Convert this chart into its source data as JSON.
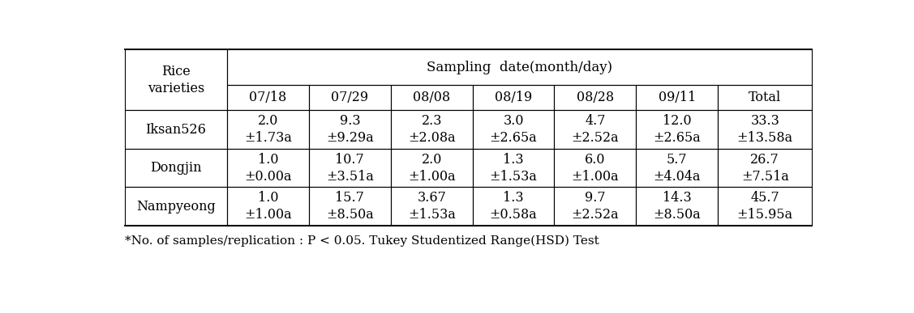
{
  "col_header_top": "Sampling  date(month/day)",
  "col_header_row": [
    "07/18",
    "07/29",
    "08/08",
    "08/19",
    "08/28",
    "09/11",
    "Total"
  ],
  "row_labels": [
    "Iksan526",
    "Dongjin",
    "Nampyeong"
  ],
  "cell_data": [
    [
      "2.0\n±1.73a",
      "9.3\n±9.29a",
      "2.3\n±2.08a",
      "3.0\n±2.65a",
      "4.7\n±2.52a",
      "12.0\n±2.65a",
      "33.3\n±13.58a"
    ],
    [
      "1.0\n±0.00a",
      "10.7\n±3.51a",
      "2.0\n±1.00a",
      "1.3\n±1.53a",
      "6.0\n±1.00a",
      "5.7\n±4.04a",
      "26.7\n±7.51a"
    ],
    [
      "1.0\n±1.00a",
      "15.7\n±8.50a",
      "3.67\n±1.53a",
      "1.3\n±0.58a",
      "9.7\n±2.52a",
      "14.3\n±8.50a",
      "45.7\n±15.95a"
    ]
  ],
  "footnote": "*No. of samples/replication : P < 0.05. Tukey Studentized Range(HSD) Test",
  "bg_color": "#ffffff",
  "border_color": "#000000",
  "text_color": "#000000",
  "font_size": 11.5,
  "header_font_size": 12
}
